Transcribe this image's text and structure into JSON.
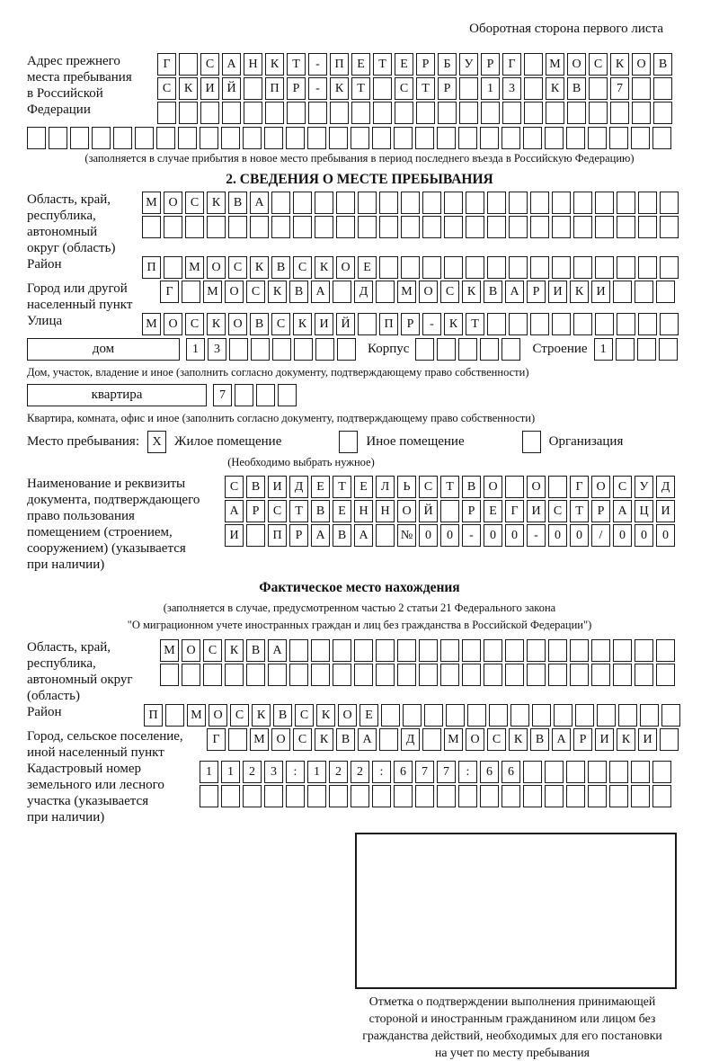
{
  "page": {
    "top_right_title": "Оборотная сторона первого листа"
  },
  "section1": {
    "label_lines": [
      "Адрес прежнего",
      "места пребывания",
      "в Российской",
      "Федерации"
    ],
    "rows": [
      [
        "Г",
        "",
        "С",
        "А",
        "Н",
        "К",
        "Т",
        "-",
        "П",
        "Е",
        "Т",
        "Е",
        "Р",
        "Б",
        "У",
        "Р",
        "Г",
        "",
        "М",
        "О",
        "С",
        "К",
        "О",
        "В"
      ],
      [
        "С",
        "К",
        "И",
        "Й",
        "",
        "П",
        "Р",
        "-",
        "К",
        "Т",
        "",
        "С",
        "Т",
        "Р",
        "",
        "1",
        "3",
        "",
        "К",
        "В",
        "",
        "7",
        "",
        ""
      ],
      [
        "",
        "",
        "",
        "",
        "",
        "",
        "",
        "",
        "",
        "",
        "",
        "",
        "",
        "",
        "",
        "",
        "",
        "",
        "",
        "",
        "",
        "",
        "",
        ""
      ],
      [
        "",
        "",
        "",
        "",
        "",
        "",
        "",
        "",
        "",
        "",
        "",
        "",
        "",
        "",
        "",
        "",
        "",
        "",
        "",
        "",
        "",
        "",
        "",
        "",
        "",
        "",
        "",
        "",
        "",
        ""
      ]
    ],
    "note": "(заполняется в случае прибытия в новое место пребывания в период последнего въезда в Российскую Федерацию)"
  },
  "section2": {
    "heading": "2. СВЕДЕНИЯ О МЕСТЕ ПРЕБЫВАНИЯ",
    "region": {
      "label_lines": [
        "Область, край,",
        "республика,",
        "автономный",
        "округ (область)"
      ],
      "rows": [
        [
          "М",
          "О",
          "С",
          "К",
          "В",
          "А",
          "",
          "",
          "",
          "",
          "",
          "",
          "",
          "",
          "",
          "",
          "",
          "",
          "",
          "",
          "",
          "",
          "",
          "",
          ""
        ],
        [
          "",
          "",
          "",
          "",
          "",
          "",
          "",
          "",
          "",
          "",
          "",
          "",
          "",
          "",
          "",
          "",
          "",
          "",
          "",
          "",
          "",
          "",
          "",
          "",
          ""
        ]
      ]
    },
    "district": {
      "label": "Район",
      "row": [
        "П",
        "",
        "М",
        "О",
        "С",
        "К",
        "В",
        "С",
        "К",
        "О",
        "Е",
        "",
        "",
        "",
        "",
        "",
        "",
        "",
        "",
        "",
        "",
        "",
        "",
        "",
        ""
      ]
    },
    "city": {
      "label_lines": [
        "Город или другой",
        "населенный пункт"
      ],
      "row": [
        "Г",
        "",
        "М",
        "О",
        "С",
        "К",
        "В",
        "А",
        "",
        "Д",
        "",
        "М",
        "О",
        "С",
        "К",
        "В",
        "А",
        "Р",
        "И",
        "К",
        "И",
        "",
        "",
        ""
      ]
    },
    "street": {
      "label": "Улица",
      "row": [
        "М",
        "О",
        "С",
        "К",
        "О",
        "В",
        "С",
        "К",
        "И",
        "Й",
        "",
        "П",
        "Р",
        "-",
        "К",
        "Т",
        "",
        "",
        "",
        "",
        "",
        "",
        "",
        "",
        ""
      ]
    },
    "house": {
      "box_label": "дом",
      "cells": [
        "1",
        "3",
        "",
        "",
        "",
        "",
        "",
        ""
      ],
      "korpus_label": "Корпус",
      "korpus_cells": [
        "",
        "",
        "",
        "",
        ""
      ],
      "stroenie_label": "Строение",
      "stroenie_cells": [
        "1",
        "",
        "",
        ""
      ]
    },
    "house_note": "Дом, участок, владение и иное (заполнить согласно документу, подтверждающему право собственности)",
    "apartment": {
      "box_label": "квартира",
      "cells": [
        "7",
        "",
        "",
        ""
      ]
    },
    "apartment_note": "Квартира, комната, офис и иное (заполнить согласно документу, подтверждающему право собственности)",
    "stay": {
      "label": "Место пребывания:",
      "options": [
        {
          "mark": "X",
          "label": "Жилое помещение"
        },
        {
          "mark": "",
          "label": "Иное помещение"
        },
        {
          "mark": "",
          "label": "Организация"
        }
      ],
      "note": "(Необходимо выбрать нужное)"
    },
    "document": {
      "label_lines": [
        "Наименование и реквизиты",
        "документа, подтверждающего",
        "право пользования",
        "помещением (строением,",
        "сооружением) (указывается",
        "при наличии)"
      ],
      "rows": [
        [
          "С",
          "В",
          "И",
          "Д",
          "Е",
          "Т",
          "Е",
          "Л",
          "Ь",
          "С",
          "Т",
          "В",
          "О",
          "",
          "О",
          "",
          "Г",
          "О",
          "С",
          "У",
          "Д"
        ],
        [
          "А",
          "Р",
          "С",
          "Т",
          "В",
          "Е",
          "Н",
          "Н",
          "О",
          "Й",
          "",
          "Р",
          "Е",
          "Г",
          "И",
          "С",
          "Т",
          "Р",
          "А",
          "Ц",
          "И"
        ],
        [
          "И",
          "",
          "П",
          "Р",
          "А",
          "В",
          "А",
          "",
          "№",
          "0",
          "0",
          "-",
          "0",
          "0",
          "-",
          "0",
          "0",
          "/",
          "0",
          "0",
          "0"
        ]
      ]
    }
  },
  "section3": {
    "heading": "Фактическое место нахождения",
    "note_lines": [
      "(заполняется в случае, предусмотренном частью 2 статьи 21 Федерального закона",
      "\"О миграционном учете иностранных граждан и лиц без гражданства в Российской Федерации\")"
    ],
    "region": {
      "label_lines": [
        "Область, край,",
        "республика,",
        "автономный округ",
        "(область)"
      ],
      "rows": [
        [
          "М",
          "О",
          "С",
          "К",
          "В",
          "А",
          "",
          "",
          "",
          "",
          "",
          "",
          "",
          "",
          "",
          "",
          "",
          "",
          "",
          "",
          "",
          "",
          "",
          ""
        ],
        [
          "",
          "",
          "",
          "",
          "",
          "",
          "",
          "",
          "",
          "",
          "",
          "",
          "",
          "",
          "",
          "",
          "",
          "",
          "",
          "",
          "",
          "",
          "",
          ""
        ]
      ]
    },
    "district": {
      "label": "Район",
      "row": [
        "П",
        "",
        "М",
        "О",
        "С",
        "К",
        "В",
        "С",
        "К",
        "О",
        "Е",
        "",
        "",
        "",
        "",
        "",
        "",
        "",
        "",
        "",
        "",
        "",
        "",
        "",
        ""
      ]
    },
    "city": {
      "label_lines": [
        "Город, сельское поселение,",
        "иной населенный пункт"
      ],
      "row": [
        "Г",
        "",
        "М",
        "О",
        "С",
        "К",
        "В",
        "А",
        "",
        "Д",
        "",
        "М",
        "О",
        "С",
        "К",
        "В",
        "А",
        "Р",
        "И",
        "К",
        "И",
        ""
      ]
    },
    "cadastre": {
      "label_lines": [
        "Кадастровый номер",
        "земельного или лесного",
        "участка (указывается",
        "при наличии)"
      ],
      "rows": [
        [
          "1",
          "1",
          "2",
          "3",
          ":",
          "1",
          "2",
          "2",
          ":",
          "6",
          "7",
          "7",
          ":",
          "6",
          "6",
          "",
          "",
          "",
          "",
          "",
          "",
          ""
        ],
        [
          "",
          "",
          "",
          "",
          "",
          "",
          "",
          "",
          "",
          "",
          "",
          "",
          "",
          "",
          "",
          "",
          "",
          "",
          "",
          "",
          "",
          ""
        ]
      ]
    },
    "stamp_caption_lines": [
      "Отметка о подтверждении выполнения принимающей",
      "стороной и иностранным гражданином или лицом без",
      "гражданства действий, необходимых для его постановки",
      "на учет по месту пребывания"
    ]
  }
}
